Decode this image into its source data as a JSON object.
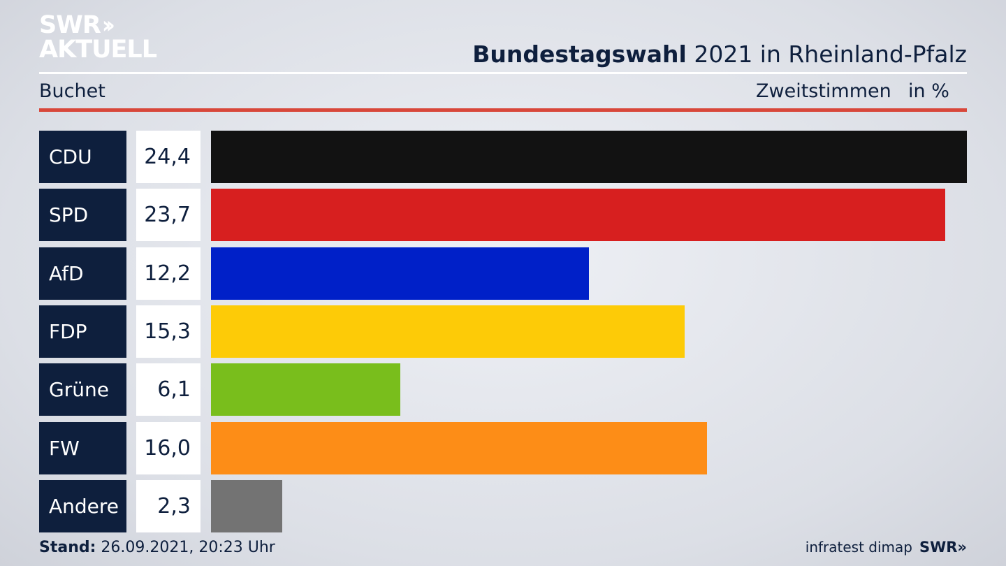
{
  "logo": {
    "line1": "SWR",
    "chevrons": "››",
    "line2": "AKTUELL"
  },
  "header": {
    "title_bold": "Bundestagswahl",
    "title_rest": " 2021 in Rheinland-Pfalz",
    "region": "Buchet",
    "metric": "Zweitstimmen",
    "unit": "in %"
  },
  "chart_data": {
    "type": "bar",
    "orientation": "horizontal",
    "title": "Bundestagswahl 2021 in Rheinland-Pfalz",
    "categories": [
      "CDU",
      "SPD",
      "AfD",
      "FDP",
      "Grüne",
      "FW",
      "Andere"
    ],
    "values": [
      24.4,
      23.7,
      12.2,
      15.3,
      6.1,
      16.0,
      2.3
    ],
    "value_labels": [
      "24,4",
      "23,7",
      "12,2",
      "15,3",
      "6,1",
      "16,0",
      "2,3"
    ],
    "colors": [
      "#121212",
      "#d71f1f",
      "#0020c8",
      "#fdcb07",
      "#79be1c",
      "#fd8d17",
      "#737373"
    ],
    "xlim": [
      0,
      24.4
    ],
    "grid": false
  },
  "footer": {
    "stand_label": "Stand:",
    "stand_value": " 26.09.2021, 20:23 Uhr",
    "source": "infratest dimap",
    "brand": "SWR»"
  }
}
